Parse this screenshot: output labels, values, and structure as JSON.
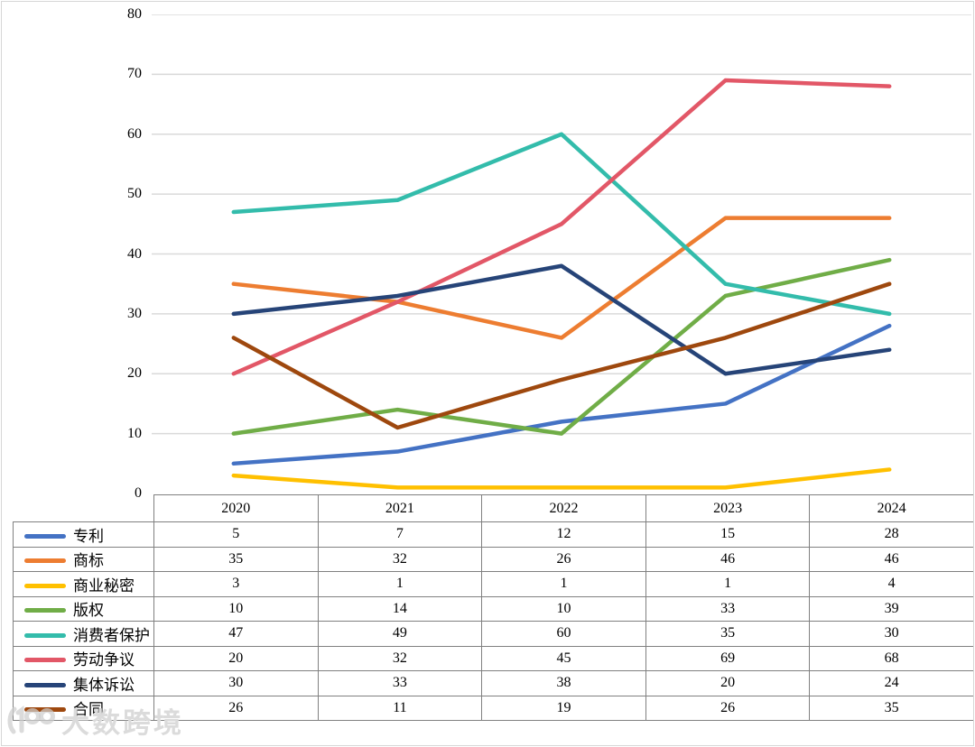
{
  "chart_data": {
    "type": "line",
    "title": "",
    "categories": [
      "2020",
      "2021",
      "2022",
      "2023",
      "2024"
    ],
    "series": [
      {
        "name": "专利",
        "color": "#4472C4",
        "values": [
          5,
          7,
          12,
          15,
          28
        ]
      },
      {
        "name": "商标",
        "color": "#ED7D31",
        "values": [
          35,
          32,
          26,
          46,
          46
        ]
      },
      {
        "name": "商业秘密",
        "color": "#FFC000",
        "values": [
          3,
          1,
          1,
          1,
          4
        ]
      },
      {
        "name": "版权",
        "color": "#70AD47",
        "values": [
          10,
          14,
          10,
          33,
          39
        ]
      },
      {
        "name": "消费者保护",
        "color": "#33BCAB",
        "values": [
          47,
          49,
          60,
          35,
          30
        ]
      },
      {
        "name": "劳动争议",
        "color": "#E25767",
        "values": [
          20,
          32,
          45,
          69,
          68
        ]
      },
      {
        "name": "集体诉讼",
        "color": "#264478",
        "values": [
          30,
          33,
          38,
          20,
          24
        ]
      },
      {
        "name": "合同",
        "color": "#9E480E",
        "values": [
          26,
          11,
          19,
          26,
          35
        ]
      }
    ],
    "ylim": [
      0,
      80
    ],
    "ytick_step": 10,
    "grid": "horizontal",
    "legend_position": "table-left-column"
  },
  "colors": {
    "gridline": "#D9D9D9",
    "table_border": "#808080",
    "text": "#000000"
  },
  "watermark": {
    "logo": "100",
    "text": "大数跨境"
  }
}
